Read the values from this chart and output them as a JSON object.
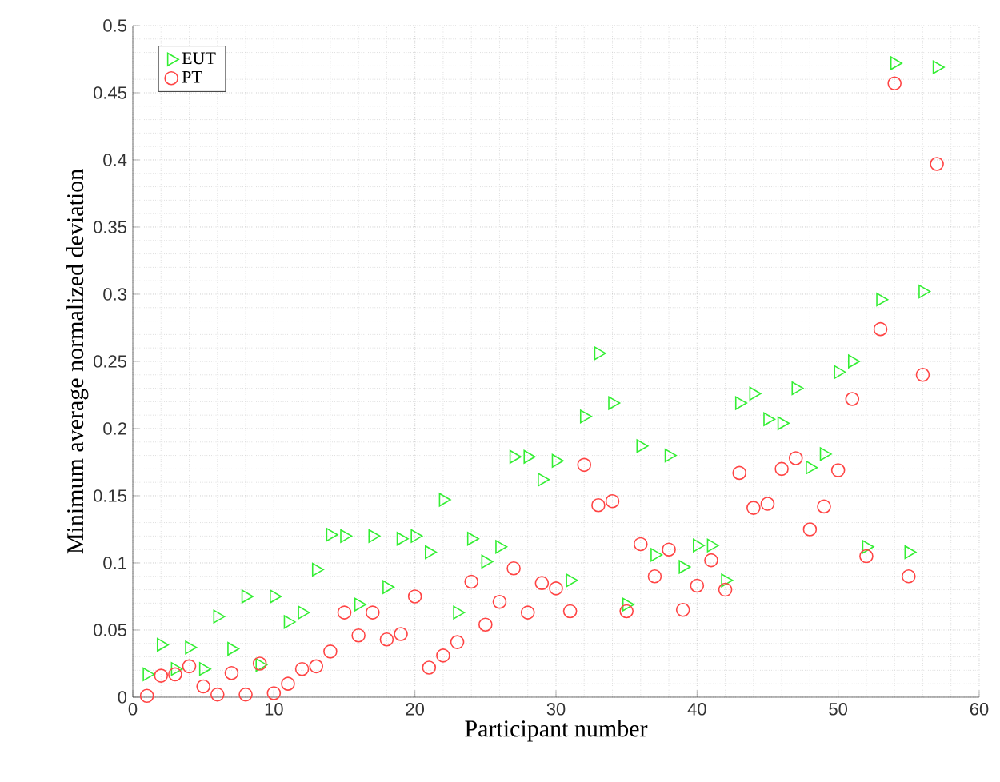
{
  "chart_data": {
    "type": "scatter",
    "xlabel": "Participant number",
    "ylabel": "Minimum average normalized deviation",
    "x": [
      1,
      2,
      3,
      4,
      5,
      6,
      7,
      8,
      9,
      10,
      11,
      12,
      13,
      14,
      15,
      16,
      17,
      18,
      19,
      20,
      21,
      22,
      23,
      24,
      25,
      26,
      27,
      28,
      29,
      30,
      31,
      32,
      33,
      34,
      35,
      36,
      37,
      38,
      39,
      40,
      41,
      42,
      43,
      44,
      45,
      46,
      47,
      48,
      49,
      50,
      51,
      52,
      53,
      54,
      55,
      56,
      57
    ],
    "series": [
      {
        "name": "EUT",
        "color": "#33ee33",
        "marker": "triangle",
        "values": [
          0.017,
          0.039,
          0.021,
          0.037,
          0.021,
          0.06,
          0.036,
          0.075,
          0.024,
          0.075,
          0.056,
          0.063,
          0.095,
          0.121,
          0.12,
          0.069,
          0.12,
          0.082,
          0.118,
          0.12,
          0.108,
          0.147,
          0.063,
          0.118,
          0.101,
          0.112,
          0.179,
          0.179,
          0.162,
          0.176,
          0.087,
          0.209,
          0.256,
          0.219,
          0.069,
          0.187,
          0.106,
          0.18,
          0.097,
          0.113,
          0.113,
          0.087,
          0.219,
          0.226,
          0.207,
          0.204,
          0.23,
          0.171,
          0.181,
          0.242,
          0.25,
          0.112,
          0.296,
          0.472,
          0.108,
          0.302,
          0.469
        ]
      },
      {
        "name": "PT",
        "color": "#ff4444",
        "marker": "circle",
        "values": [
          0.001,
          0.016,
          0.017,
          0.023,
          0.008,
          0.002,
          0.018,
          0.002,
          0.025,
          0.003,
          0.01,
          0.021,
          0.023,
          0.034,
          0.063,
          0.046,
          0.063,
          0.043,
          0.047,
          0.075,
          0.022,
          0.031,
          0.041,
          0.086,
          0.054,
          0.071,
          0.096,
          0.063,
          0.085,
          0.081,
          0.064,
          0.173,
          0.143,
          0.146,
          0.064,
          0.114,
          0.09,
          0.11,
          0.065,
          0.083,
          0.102,
          0.08,
          0.167,
          0.141,
          0.144,
          0.17,
          0.178,
          0.125,
          0.142,
          0.169,
          0.222,
          0.105,
          0.274,
          0.457,
          0.09,
          0.24,
          0.397
        ]
      }
    ],
    "xlim": [
      0,
      60
    ],
    "xticks": [
      0,
      10,
      20,
      30,
      40,
      50,
      60
    ],
    "ylim": [
      0,
      0.5
    ],
    "yticks": [
      0,
      0.05,
      0.1,
      0.15,
      0.2,
      0.25,
      0.3,
      0.35,
      0.4,
      0.45,
      0.5
    ],
    "grid": true,
    "legend": "top left"
  }
}
